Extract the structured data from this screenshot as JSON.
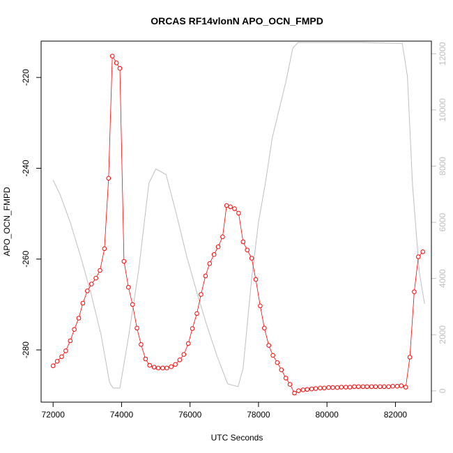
{
  "chart_data": {
    "type": "line",
    "title": "ORCAS RF14vlonN APO_OCN_FMPD",
    "xlabel": "UTC Seconds",
    "ylabel": "APO_OCN_FMPD",
    "xlim": [
      71650,
      83050
    ],
    "ylim": [
      -291.5,
      -212
    ],
    "y2lim": [
      -400,
      12450
    ],
    "x_ticks": [
      72000,
      74000,
      76000,
      78000,
      80000,
      82000
    ],
    "y_ticks": [
      -280,
      -260,
      -240,
      -220
    ],
    "y2_ticks": [
      0,
      2000,
      4000,
      6000,
      8000,
      10000,
      12000
    ],
    "grid": false,
    "legend": "none",
    "colors": {
      "series": "#ff0000",
      "secondary": "#bebebe"
    },
    "series": [
      {
        "axis": "left",
        "style": "line+circles",
        "x": [
          72000,
          72120,
          72250,
          72370,
          72500,
          72620,
          72750,
          72870,
          73000,
          73120,
          73250,
          73370,
          73500,
          73620,
          73730,
          73850,
          73950,
          74070,
          74200,
          74320,
          74450,
          74570,
          74700,
          74820,
          74950,
          75070,
          75200,
          75320,
          75450,
          75570,
          75700,
          75820,
          75950,
          76070,
          76200,
          76320,
          76450,
          76570,
          76700,
          76820,
          76950,
          77070,
          77180,
          77300,
          77420,
          77550,
          77670,
          77800,
          77920,
          78050,
          78170,
          78300,
          78420,
          78550,
          78670,
          78800,
          78920,
          79050,
          79170,
          79300,
          79420,
          79550,
          79670,
          79800,
          79920,
          80050,
          80170,
          80300,
          80420,
          80550,
          80670,
          80800,
          80920,
          81050,
          81170,
          81300,
          81420,
          81550,
          81670,
          81800,
          81920,
          82050,
          82170,
          82300,
          82420,
          82550,
          82670,
          82800
        ],
        "y": [
          -283.5,
          -282.5,
          -281.5,
          -280.2,
          -278,
          -275.5,
          -273,
          -269.7,
          -267,
          -265.5,
          -264.2,
          -262.5,
          -257.7,
          -242.2,
          -215.3,
          -216.8,
          -218,
          -260.5,
          -266.2,
          -270,
          -275.2,
          -278.8,
          -282,
          -283.4,
          -283.8,
          -284,
          -284,
          -284,
          -283.7,
          -283.2,
          -282.2,
          -281,
          -278.6,
          -275.3,
          -272,
          -267.8,
          -263.7,
          -261,
          -259,
          -257.3,
          -255.1,
          -248.2,
          -248.5,
          -248.9,
          -249.9,
          -256.2,
          -258,
          -259.8,
          -264.5,
          -270.3,
          -275.2,
          -279,
          -281.2,
          -282.8,
          -284.4,
          -286.2,
          -287.6,
          -289.5,
          -289,
          -288.8,
          -288.7,
          -288.6,
          -288.5,
          -288.4,
          -288.4,
          -288.3,
          -288.3,
          -288.3,
          -288.2,
          -288.2,
          -288.2,
          -288.1,
          -288.1,
          -288.1,
          -288.1,
          -288.1,
          -288.1,
          -288.1,
          -288.1,
          -288.1,
          -288,
          -288,
          -287.9,
          -288.2,
          -281.6,
          -267.2,
          -259.5,
          -258.4
        ]
      },
      {
        "axis": "right",
        "style": "line",
        "x": [
          72000,
          72200,
          72500,
          72800,
          73100,
          73400,
          73650,
          73750,
          73950,
          74200,
          74500,
          74800,
          75000,
          75300,
          75600,
          75900,
          76200,
          76500,
          76800,
          77100,
          77400,
          77550,
          77800,
          78000,
          78200,
          78400,
          78700,
          78800,
          79000,
          79150,
          79300,
          79600,
          80000,
          80500,
          81000,
          81500,
          82000,
          82200,
          82350,
          82500,
          82700,
          82850
        ],
        "y": [
          7500,
          7000,
          6000,
          4800,
          3500,
          2000,
          300,
          100,
          100,
          1900,
          4300,
          7400,
          7900,
          7700,
          6300,
          4800,
          3500,
          2300,
          1200,
          250,
          150,
          800,
          4000,
          6000,
          7400,
          9000,
          10500,
          11000,
          12200,
          12400,
          12400,
          12400,
          12400,
          12400,
          12400,
          12380,
          12370,
          12370,
          11200,
          7300,
          4200,
          3100
        ]
      }
    ]
  }
}
